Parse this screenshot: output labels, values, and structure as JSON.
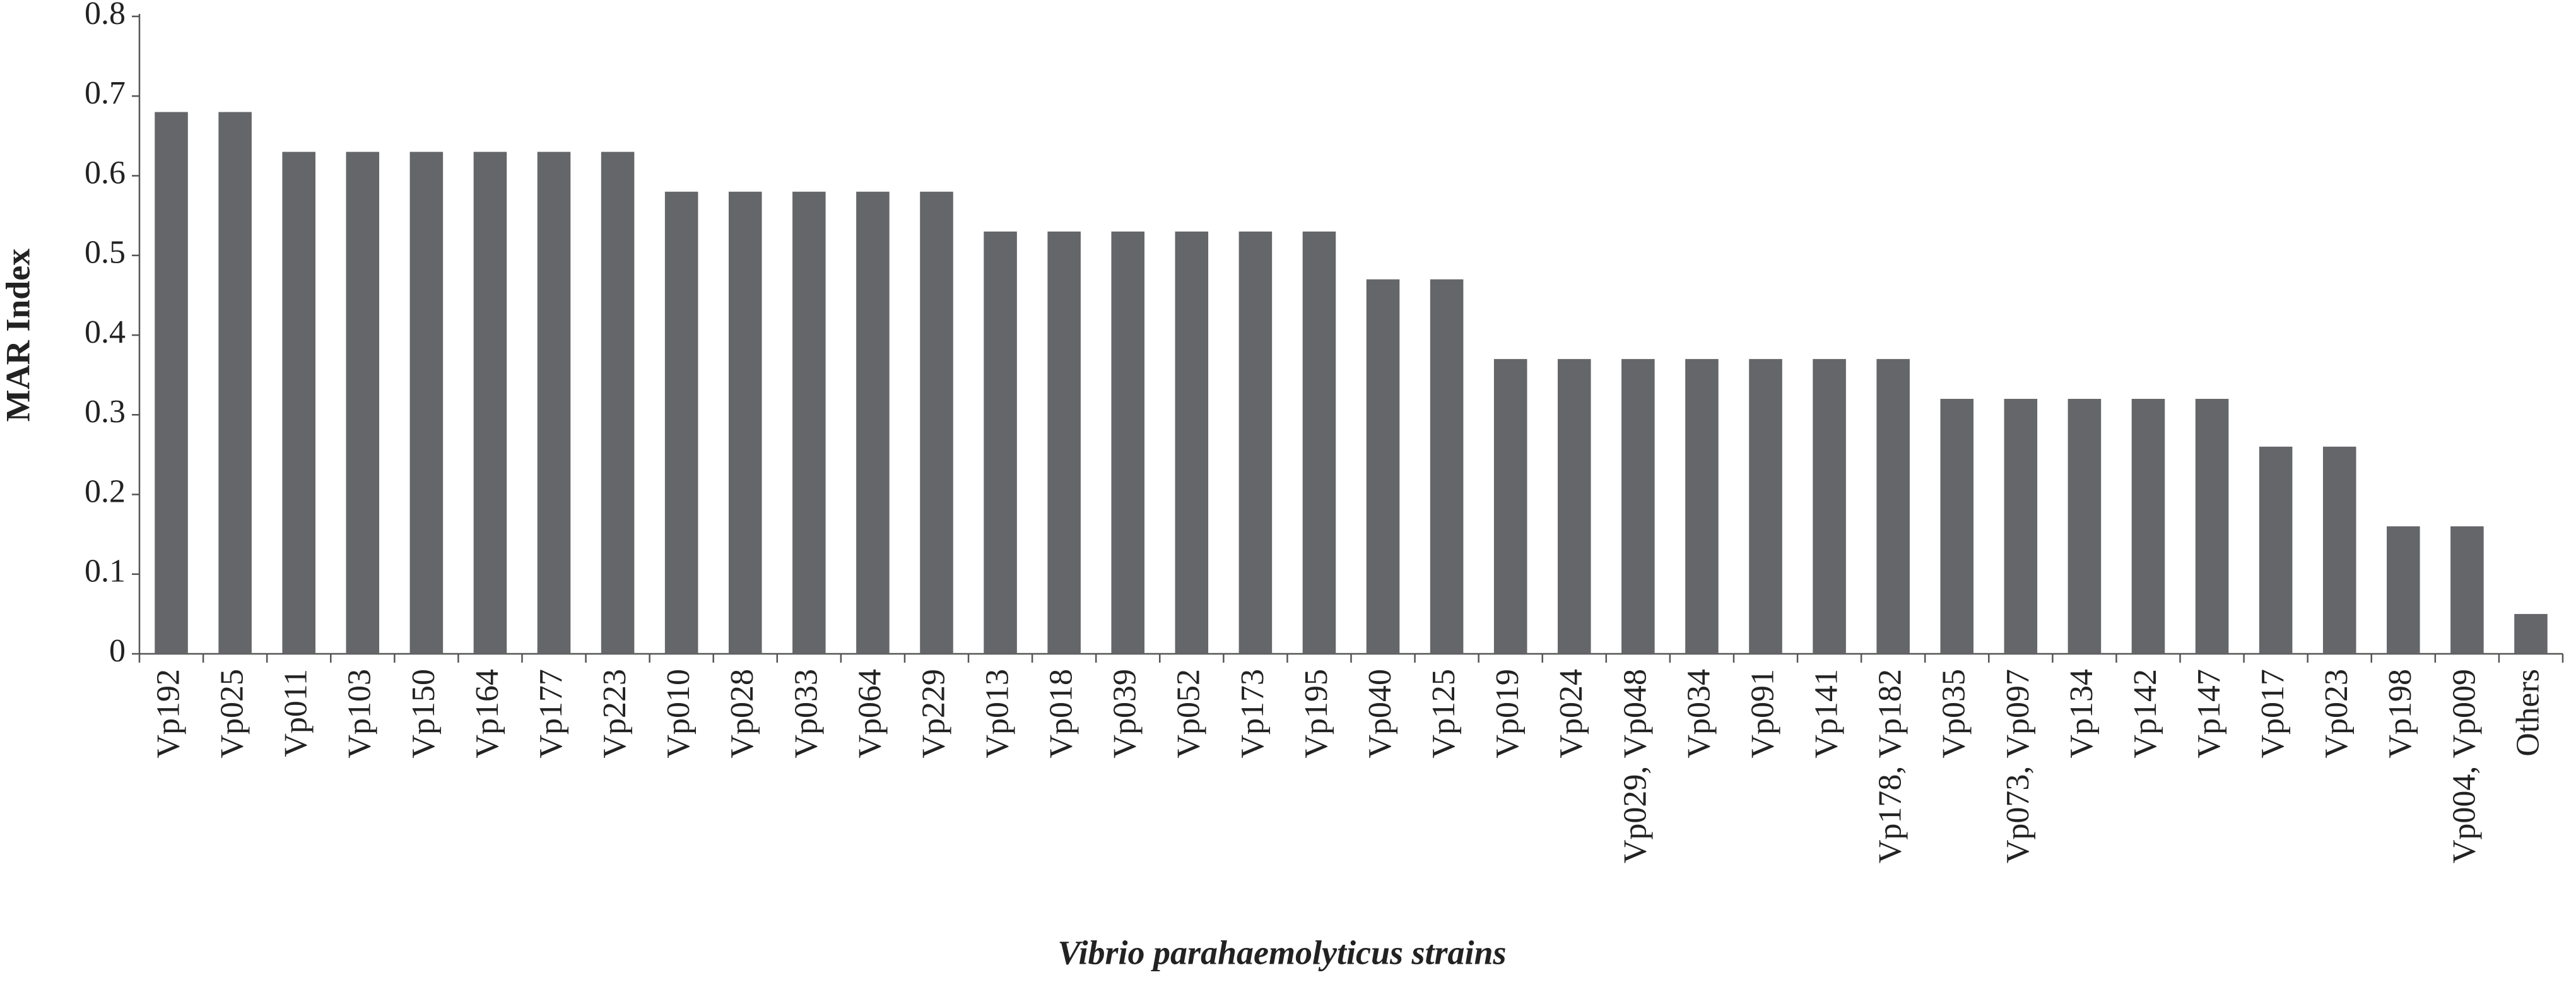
{
  "chart_data": {
    "type": "bar",
    "x_label": "Vibrio parahaemolyticus strains",
    "y_label": "MAR Index",
    "categories": [
      "Vp192",
      "Vp025",
      "Vp011",
      "Vp103",
      "Vp150",
      "Vp164",
      "Vp177",
      "Vp223",
      "Vp010",
      "Vp028",
      "Vp033",
      "Vp064",
      "Vp229",
      "Vp013",
      "Vp018",
      "Vp039",
      "Vp052",
      "Vp173",
      "Vp195",
      "Vp040",
      "Vp125",
      "Vp019",
      "Vp024",
      "Vp029, Vp048",
      "Vp034",
      "Vp091",
      "Vp141",
      "Vp178, Vp182",
      "Vp035",
      "Vp073, Vp097",
      "Vp134",
      "Vp142",
      "Vp147",
      "Vp017",
      "Vp023",
      "Vp198",
      "Vp004, Vp009",
      "Others"
    ],
    "values": [
      0.68,
      0.68,
      0.63,
      0.63,
      0.63,
      0.63,
      0.63,
      0.63,
      0.58,
      0.58,
      0.58,
      0.58,
      0.58,
      0.53,
      0.53,
      0.53,
      0.53,
      0.53,
      0.53,
      0.47,
      0.47,
      0.37,
      0.37,
      0.37,
      0.37,
      0.37,
      0.37,
      0.37,
      0.32,
      0.32,
      0.32,
      0.32,
      0.32,
      0.26,
      0.26,
      0.16,
      0.16,
      0.05
    ],
    "color": "#646669",
    "ylim": [
      0,
      0.8
    ],
    "yticks": [
      0,
      0.1,
      0.2,
      0.3,
      0.4,
      0.5,
      0.6,
      0.7,
      0.8
    ],
    "grid": false
  }
}
